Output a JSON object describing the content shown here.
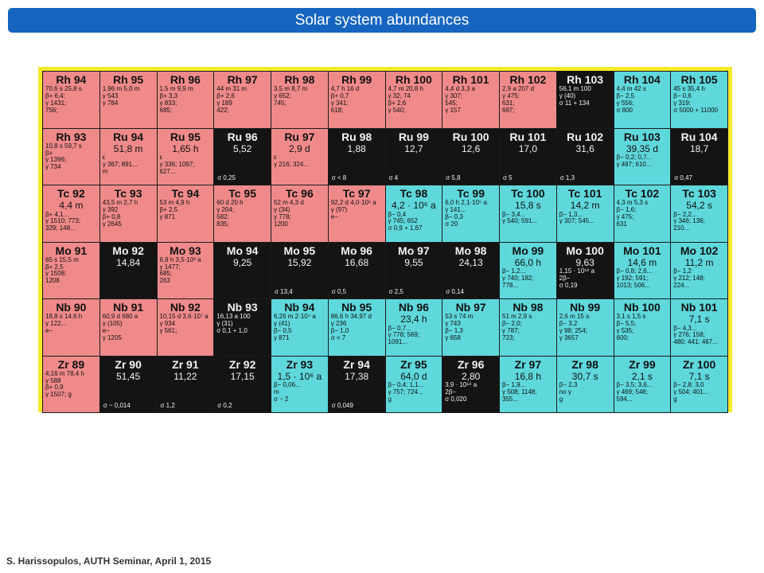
{
  "slide": {
    "title": "Solar system abundances",
    "footer": "S. Harissopulos, AUTH Seminar, April 1, 2015"
  },
  "colors": {
    "title_bar": "#1565c0",
    "frame": "#f5ea2a",
    "p_rich": "#f08a8a",
    "stable": "#141414",
    "n_rich": "#5fd8dc"
  },
  "chart_rows": [
    [
      {
        "name": "Rh 94",
        "color": "pink",
        "lines": [
          "70,6 s  25,8 s",
          "β+ 6,4;",
          "γ 1431;",
          "756;"
        ]
      },
      {
        "name": "Rh 95",
        "color": "pink",
        "lines": [
          "1,96 m  5,0 m",
          "γ 543",
          "γ 784"
        ]
      },
      {
        "name": "Rh 96",
        "color": "pink",
        "lines": [
          "1,5 m  9,9 m",
          "β+ 3,3",
          "γ 833;",
          "685;"
        ]
      },
      {
        "name": "Rh 97",
        "color": "pink",
        "lines": [
          "44 m  31 m",
          "β+ 2,6",
          "γ 189",
          "422;"
        ]
      },
      {
        "name": "Rh 98",
        "color": "pink",
        "lines": [
          "3,5 m  8,7 m",
          "γ 652;",
          "745;"
        ]
      },
      {
        "name": "Rh 99",
        "color": "pink",
        "lines": [
          "4,7 h  16 d",
          "β+ 0,7",
          "γ 341;",
          "618;"
        ]
      },
      {
        "name": "Rh 100",
        "color": "pink",
        "lines": [
          "4,7 m  20,8 h",
          "γ 32; 74",
          "β+ 2,6",
          "γ 540;"
        ]
      },
      {
        "name": "Rh 101",
        "color": "pink",
        "lines": [
          "4,4 d  3,3 a",
          "γ 307;",
          "545;",
          "γ 157"
        ]
      },
      {
        "name": "Rh 102",
        "color": "pink",
        "lines": [
          "2,9 a  207 d",
          "γ 475;",
          "631;",
          "697;"
        ]
      },
      {
        "name": "Rh 103",
        "color": "black",
        "lines": [
          "56,1 m  100",
          "γ (40)",
          "σ 11 + 134"
        ]
      },
      {
        "name": "Rh 104",
        "color": "cyan",
        "lines": [
          "4,4 m  42 s",
          "β− 2,5",
          "γ 556;",
          "σ 800"
        ]
      },
      {
        "name": "Rh 105",
        "color": "cyan",
        "lines": [
          "45 s  35,4 h",
          "β− 0,6",
          "γ 319;",
          "σ 5000 + 11000"
        ]
      }
    ],
    [
      {
        "name": "Rh 93",
        "color": "pink",
        "lines": [
          "10,8 s  59,7 s",
          "β+",
          "γ 1396;",
          "γ 734"
        ]
      },
      {
        "name": "Ru 94",
        "value": "51,8 m",
        "color": "pink",
        "lines": [
          "ε",
          "γ 367; 891...",
          "m"
        ]
      },
      {
        "name": "Ru 95",
        "value": "1,65 h",
        "color": "pink",
        "lines": [
          "ε",
          "γ 336; 1097;",
          "627..."
        ]
      },
      {
        "name": "Ru 96",
        "value": "5,52",
        "color": "black",
        "lines": [],
        "sigma": "σ 0,25"
      },
      {
        "name": "Ru 97",
        "value": "2,9 d",
        "color": "pink",
        "lines": [
          "ε",
          "γ 216; 324..."
        ]
      },
      {
        "name": "Ru 98",
        "value": "1,88",
        "color": "black",
        "lines": [],
        "sigma": "σ < 8"
      },
      {
        "name": "Ru 99",
        "value": "12,7",
        "color": "black",
        "lines": [],
        "sigma": "σ 4"
      },
      {
        "name": "Ru 100",
        "value": "12,6",
        "color": "black",
        "lines": [],
        "sigma": "σ 5,8"
      },
      {
        "name": "Ru 101",
        "value": "17,0",
        "color": "black",
        "lines": [],
        "sigma": "σ 5"
      },
      {
        "name": "Ru 102",
        "value": "31,6",
        "color": "black",
        "lines": [],
        "sigma": "σ 1,3"
      },
      {
        "name": "Ru 103",
        "value": "39,35 d",
        "color": "cyan",
        "lines": [
          "β− 0,2; 0,7...",
          "γ 497; 610..."
        ]
      },
      {
        "name": "Ru 104",
        "value": "18,7",
        "color": "black",
        "lines": [],
        "sigma": "σ 0,47"
      }
    ],
    [
      {
        "name": "Tc 92",
        "value": "4,4 m",
        "color": "pink",
        "lines": [
          "β+ 4,1...",
          "γ 1510; 773;",
          "329; 148..."
        ]
      },
      {
        "name": "Tc 93",
        "color": "pink",
        "lines": [
          "43,5 m  2,7 h",
          "γ 392",
          "β+ 0,8",
          "γ 2645"
        ]
      },
      {
        "name": "Tc 94",
        "color": "pink",
        "lines": [
          "53 m  4,9 h",
          "β+ 2,5",
          "γ 871"
        ]
      },
      {
        "name": "Tc 95",
        "color": "pink",
        "lines": [
          "60 d  20 h",
          "γ 204;",
          "582;",
          "835;"
        ]
      },
      {
        "name": "Tc 96",
        "color": "pink",
        "lines": [
          "52 m  4,3 d",
          "γ (34)",
          "γ 778;",
          "1200"
        ]
      },
      {
        "name": "Tc 97",
        "color": "pink",
        "lines": [
          "92,2 d  4,0·10⁶ a",
          "γ (97)",
          "e−"
        ]
      },
      {
        "name": "Tc 98",
        "value": "4,2 · 10⁶ a",
        "color": "cyan",
        "lines": [
          "β− 0,4",
          "γ 745; 652",
          "σ 0,9 + 1,67"
        ]
      },
      {
        "name": "Tc 99",
        "color": "cyan",
        "lines": [
          "6,0 h  2,1·10⁵ a",
          "γ 141...",
          "β− 0,3",
          "σ 20"
        ]
      },
      {
        "name": "Tc 100",
        "value": "15,8 s",
        "color": "cyan",
        "lines": [
          "β− 3,4...",
          "γ 540; 591..."
        ]
      },
      {
        "name": "Tc 101",
        "value": "14,2 m",
        "color": "cyan",
        "lines": [
          "β− 1,3...",
          "γ 307; 545..."
        ]
      },
      {
        "name": "Tc 102",
        "color": "cyan",
        "lines": [
          "4,3 m  5,3 s",
          "β− 1,6;",
          "γ 475;",
          "631"
        ]
      },
      {
        "name": "Tc 103",
        "value": "54,2 s",
        "color": "cyan",
        "lines": [
          "β− 2,2...",
          "γ 346; 136;",
          "210..."
        ]
      }
    ],
    [
      {
        "name": "Mo 91",
        "color": "pink",
        "lines": [
          "65 s  15,5 m",
          "β+ 2,5",
          "γ 1508;",
          "1208"
        ]
      },
      {
        "name": "Mo 92",
        "value": "14,84",
        "color": "black",
        "lines": []
      },
      {
        "name": "Mo 93",
        "color": "pink",
        "lines": [
          "6,9 h  3,5·10³ a",
          "γ 1477;",
          "685;",
          "263"
        ]
      },
      {
        "name": "Mo 94",
        "value": "9,25",
        "color": "black",
        "lines": []
      },
      {
        "name": "Mo 95",
        "value": "15,92",
        "color": "black",
        "lines": [],
        "sigma": "σ 13,4"
      },
      {
        "name": "Mo 96",
        "value": "16,68",
        "color": "black",
        "lines": [],
        "sigma": "σ 0,5"
      },
      {
        "name": "Mo 97",
        "value": "9,55",
        "color": "black",
        "lines": [],
        "sigma": "σ 2,5"
      },
      {
        "name": "Mo 98",
        "value": "24,13",
        "color": "black",
        "lines": [],
        "sigma": "σ 0,14"
      },
      {
        "name": "Mo 99",
        "value": "66,0 h",
        "color": "cyan",
        "lines": [
          "β− 1,2...",
          "γ 740; 182;",
          "778..."
        ]
      },
      {
        "name": "Mo 100",
        "value": "9,63",
        "color": "black",
        "lines": [
          "1,15 · 10¹⁹ a",
          "2β−",
          "σ 0,19"
        ]
      },
      {
        "name": "Mo 101",
        "value": "14,6 m",
        "color": "cyan",
        "lines": [
          "β− 0,8; 2,6...",
          "γ 192; 591;",
          "1013; 506..."
        ]
      },
      {
        "name": "Mo 102",
        "value": "11,2 m",
        "color": "cyan",
        "lines": [
          "β− 1,2",
          "γ 212; 148;",
          "224..."
        ]
      }
    ],
    [
      {
        "name": "Nb 90",
        "color": "pink",
        "lines": [
          "18,8 s  14,6 h",
          "γ 122...",
          "e−"
        ]
      },
      {
        "name": "Nb 91",
        "color": "pink",
        "lines": [
          "60,9 d  680 a",
          "γ (105)",
          "e−",
          "γ 1205"
        ]
      },
      {
        "name": "Nb 92",
        "color": "pink",
        "lines": [
          "10,15 d  3,6·10⁷ a",
          "γ 934",
          "γ 561;"
        ]
      },
      {
        "name": "Nb 93",
        "color": "black",
        "lines": [
          "16,13 a  100",
          "γ (31)",
          "σ 0,1 + 1,0"
        ]
      },
      {
        "name": "Nb 94",
        "color": "cyan",
        "lines": [
          "6,26 m  2·10⁴ a",
          "γ (41)",
          "β− 0,5",
          "γ 871"
        ]
      },
      {
        "name": "Nb 95",
        "color": "cyan",
        "lines": [
          "86,6 h  34,97 d",
          "γ 236",
          "β− 1,0",
          "σ < 7"
        ]
      },
      {
        "name": "Nb 96",
        "value": "23,4 h",
        "color": "cyan",
        "lines": [
          "β− 0,7...",
          "γ 778; 569;",
          "1091..."
        ]
      },
      {
        "name": "Nb 97",
        "color": "cyan",
        "lines": [
          "53 s  74 m",
          "γ 743",
          "β− 1,3",
          "γ 658"
        ]
      },
      {
        "name": "Nb 98",
        "color": "cyan",
        "lines": [
          "51 m  2,9 s",
          "β− 2,0;",
          "γ 787;",
          "723;"
        ]
      },
      {
        "name": "Nb 99",
        "color": "cyan",
        "lines": [
          "2,6 m  15 s",
          "β− 3,2",
          "γ 98; 254;",
          "γ 3657"
        ]
      },
      {
        "name": "Nb 100",
        "color": "cyan",
        "lines": [
          "3,1 s  1,5 s",
          "β− 5,5;",
          "γ 535;",
          "600;"
        ]
      },
      {
        "name": "Nb 101",
        "value": "7,1 s",
        "color": "cyan",
        "lines": [
          "β− 4,3...",
          "γ 276; 158;",
          "480; 441; 467..."
        ]
      }
    ],
    [
      {
        "name": "Zr 89",
        "color": "pink",
        "lines": [
          "4,16 m  78,4 h",
          "γ 588",
          "β+ 0,9",
          "γ 1507; g"
        ]
      },
      {
        "name": "Zr 90",
        "value": "51,45",
        "color": "black",
        "lines": [],
        "sigma": "σ ~ 0,014"
      },
      {
        "name": "Zr 91",
        "value": "11,22",
        "color": "black",
        "lines": [],
        "sigma": "σ 1,2"
      },
      {
        "name": "Zr 92",
        "value": "17,15",
        "color": "black",
        "lines": [],
        "sigma": "σ 0,2"
      },
      {
        "name": "Zr 93",
        "value": "1,5 · 10⁶ a",
        "color": "cyan",
        "lines": [
          "β− 0,06...",
          "m",
          "σ ~ 2"
        ]
      },
      {
        "name": "Zr 94",
        "value": "17,38",
        "color": "black",
        "lines": [],
        "sigma": "σ 0,049"
      },
      {
        "name": "Zr 95",
        "value": "64,0 d",
        "color": "cyan",
        "lines": [
          "β− 0,4; 1,1...",
          "γ 757; 724...",
          "g"
        ]
      },
      {
        "name": "Zr 96",
        "value": "2,80",
        "color": "black",
        "lines": [
          "3,9 · 10¹⁹ a",
          "2β−",
          "σ 0,020"
        ]
      },
      {
        "name": "Zr 97",
        "value": "16,8 h",
        "color": "cyan",
        "lines": [
          "β− 1,9...",
          "γ 508; 1148;",
          "355..."
        ]
      },
      {
        "name": "Zr 98",
        "value": "30,7 s",
        "color": "cyan",
        "lines": [
          "β− 2,3",
          "no γ",
          "g"
        ]
      },
      {
        "name": "Zr 99",
        "value": "2,1 s",
        "color": "cyan",
        "lines": [
          "β− 3,5; 3,6...",
          "γ 469; 546;",
          "594..."
        ]
      },
      {
        "name": "Zr 100",
        "value": "7,1 s",
        "color": "cyan",
        "lines": [
          "β− 2,8; 3,0",
          "γ 504; 401...",
          "g"
        ]
      }
    ]
  ]
}
